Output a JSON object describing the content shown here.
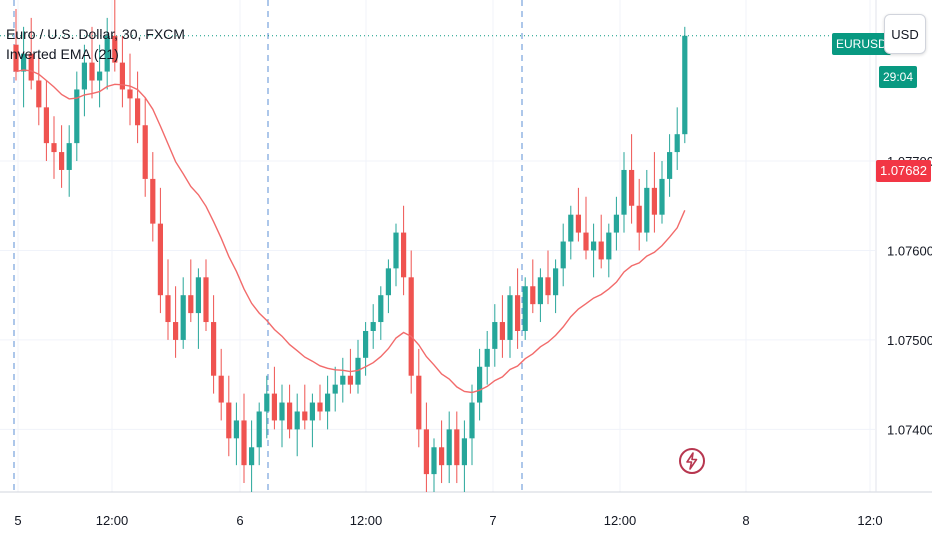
{
  "legend": {
    "symbol_line": "Euro / U.S. Dollar, 30, FXCM",
    "indicator_line": "Inverted EMA (21)"
  },
  "badges": {
    "symbol": "EURUSD",
    "countdown": "29:04",
    "ema_value": "1.07682",
    "currency_button": "USD"
  },
  "colors": {
    "up": "#26a69a",
    "down": "#ef5350",
    "ema": "#f26b6b",
    "symbol_badge": "#089981",
    "ema_badge": "#f23645",
    "grid": "#f0f3fa",
    "session_line": "#5b8fd6",
    "lightning": "#b7364f"
  },
  "chart_data": {
    "type": "candlestick",
    "symbol": "Euro / U.S. Dollar, 30, FXCM",
    "timeframe": "30",
    "y_axis": {
      "ticks": [
        "1.07700",
        "1.07600",
        "1.07500",
        "1.07400"
      ],
      "tick_values": [
        1.077,
        1.076,
        1.075,
        1.074
      ],
      "range": [
        1.0733,
        1.0788
      ]
    },
    "x_axis": {
      "ticks": [
        "5",
        "12:00",
        "6",
        "12:00",
        "7",
        "12:00",
        "8",
        "12:0"
      ]
    },
    "session_breaks": [
      "5",
      "6",
      "7"
    ],
    "ema": {
      "name": "Inverted EMA (21)",
      "last_value": 1.07682
    },
    "ohlc": [
      [
        1.0783,
        1.0787,
        1.0779,
        1.078
      ],
      [
        1.078,
        1.0785,
        1.0776,
        1.0782
      ],
      [
        1.0782,
        1.0786,
        1.0778,
        1.0779
      ],
      [
        1.0779,
        1.0782,
        1.0774,
        1.0776
      ],
      [
        1.0776,
        1.0779,
        1.077,
        1.0772
      ],
      [
        1.0772,
        1.0775,
        1.0768,
        1.0771
      ],
      [
        1.0771,
        1.0774,
        1.0767,
        1.0769
      ],
      [
        1.0769,
        1.0774,
        1.0766,
        1.0772
      ],
      [
        1.0772,
        1.078,
        1.077,
        1.0778
      ],
      [
        1.0778,
        1.0783,
        1.0775,
        1.0781
      ],
      [
        1.0781,
        1.0785,
        1.0777,
        1.0779
      ],
      [
        1.0779,
        1.0783,
        1.0776,
        1.078
      ],
      [
        1.078,
        1.0786,
        1.0778,
        1.0784
      ],
      [
        1.0784,
        1.0788,
        1.078,
        1.0781
      ],
      [
        1.0781,
        1.0784,
        1.0776,
        1.0778
      ],
      [
        1.0778,
        1.0782,
        1.0774,
        1.0777
      ],
      [
        1.0777,
        1.078,
        1.0772,
        1.0774
      ],
      [
        1.0774,
        1.0777,
        1.0766,
        1.0768
      ],
      [
        1.0768,
        1.0771,
        1.0761,
        1.0763
      ],
      [
        1.0763,
        1.0767,
        1.0753,
        1.0755
      ],
      [
        1.0755,
        1.0759,
        1.075,
        1.0752
      ],
      [
        1.0752,
        1.0756,
        1.0748,
        1.075
      ],
      [
        1.075,
        1.0757,
        1.0749,
        1.0755
      ],
      [
        1.0755,
        1.0759,
        1.0752,
        1.0753
      ],
      [
        1.0753,
        1.0758,
        1.0749,
        1.0757
      ],
      [
        1.0757,
        1.0759,
        1.0751,
        1.0752
      ],
      [
        1.0752,
        1.0755,
        1.0744,
        1.0746
      ],
      [
        1.0746,
        1.0749,
        1.0741,
        1.0743
      ],
      [
        1.0743,
        1.0746,
        1.0737,
        1.0739
      ],
      [
        1.0739,
        1.0743,
        1.0736,
        1.0741
      ],
      [
        1.0741,
        1.0744,
        1.0734,
        1.0736
      ],
      [
        1.0736,
        1.0741,
        1.0733,
        1.0738
      ],
      [
        1.0738,
        1.0743,
        1.0736,
        1.0742
      ],
      [
        1.0742,
        1.0746,
        1.0739,
        1.0744
      ],
      [
        1.0744,
        1.0747,
        1.074,
        1.0741
      ],
      [
        1.0741,
        1.0745,
        1.0738,
        1.0743
      ],
      [
        1.0743,
        1.0745,
        1.0739,
        1.074
      ],
      [
        1.074,
        1.0744,
        1.0737,
        1.0742
      ],
      [
        1.0742,
        1.0745,
        1.074,
        1.0741
      ],
      [
        1.0741,
        1.0744,
        1.0738,
        1.0743
      ],
      [
        1.0743,
        1.0745,
        1.0741,
        1.0742
      ],
      [
        1.0742,
        1.0746,
        1.074,
        1.0744
      ],
      [
        1.0744,
        1.0747,
        1.0742,
        1.0745
      ],
      [
        1.0745,
        1.0748,
        1.0743,
        1.0746
      ],
      [
        1.0746,
        1.0749,
        1.0744,
        1.0745
      ],
      [
        1.0745,
        1.075,
        1.0744,
        1.0748
      ],
      [
        1.0748,
        1.0752,
        1.0746,
        1.0751
      ],
      [
        1.0751,
        1.0754,
        1.0749,
        1.0752
      ],
      [
        1.0752,
        1.0756,
        1.075,
        1.0755
      ],
      [
        1.0755,
        1.0759,
        1.0753,
        1.0758
      ],
      [
        1.0758,
        1.0763,
        1.0756,
        1.0762
      ],
      [
        1.0762,
        1.0765,
        1.0755,
        1.0757
      ],
      [
        1.0757,
        1.076,
        1.0744,
        1.0746
      ],
      [
        1.0746,
        1.0749,
        1.0738,
        1.074
      ],
      [
        1.074,
        1.0743,
        1.0733,
        1.0735
      ],
      [
        1.0735,
        1.0739,
        1.0733,
        1.0738
      ],
      [
        1.0738,
        1.0741,
        1.0734,
        1.0736
      ],
      [
        1.0736,
        1.0742,
        1.0734,
        1.074
      ],
      [
        1.074,
        1.0742,
        1.0734,
        1.0736
      ],
      [
        1.0736,
        1.0741,
        1.0733,
        1.0739
      ],
      [
        1.0739,
        1.0745,
        1.0736,
        1.0743
      ],
      [
        1.0743,
        1.0749,
        1.0741,
        1.0747
      ],
      [
        1.0747,
        1.0751,
        1.0745,
        1.0749
      ],
      [
        1.0749,
        1.0754,
        1.0747,
        1.0752
      ],
      [
        1.0752,
        1.0755,
        1.0748,
        1.075
      ],
      [
        1.075,
        1.0756,
        1.0748,
        1.0755
      ],
      [
        1.0755,
        1.0758,
        1.0749,
        1.0751
      ],
      [
        1.0751,
        1.0757,
        1.075,
        1.0756
      ],
      [
        1.0756,
        1.0759,
        1.0753,
        1.0754
      ],
      [
        1.0754,
        1.0758,
        1.0752,
        1.0757
      ],
      [
        1.0757,
        1.076,
        1.0754,
        1.0755
      ],
      [
        1.0755,
        1.0759,
        1.0753,
        1.0758
      ],
      [
        1.0758,
        1.0763,
        1.0756,
        1.0761
      ],
      [
        1.0761,
        1.0765,
        1.0759,
        1.0764
      ],
      [
        1.0764,
        1.0767,
        1.0761,
        1.0762
      ],
      [
        1.0762,
        1.0766,
        1.0759,
        1.076
      ],
      [
        1.076,
        1.0763,
        1.0757,
        1.0761
      ],
      [
        1.0761,
        1.0764,
        1.0758,
        1.0759
      ],
      [
        1.0759,
        1.0763,
        1.0757,
        1.0762
      ],
      [
        1.0762,
        1.0766,
        1.076,
        1.0764
      ],
      [
        1.0764,
        1.0771,
        1.0762,
        1.0769
      ],
      [
        1.0769,
        1.0773,
        1.0763,
        1.0765
      ],
      [
        1.0765,
        1.0768,
        1.076,
        1.0762
      ],
      [
        1.0762,
        1.0769,
        1.0761,
        1.0767
      ],
      [
        1.0767,
        1.0771,
        1.0762,
        1.0764
      ],
      [
        1.0764,
        1.077,
        1.0763,
        1.0768
      ],
      [
        1.0768,
        1.0773,
        1.0766,
        1.0771
      ],
      [
        1.0771,
        1.0776,
        1.0769,
        1.0773
      ],
      [
        1.0773,
        1.0785,
        1.0772,
        1.0784
      ]
    ]
  }
}
